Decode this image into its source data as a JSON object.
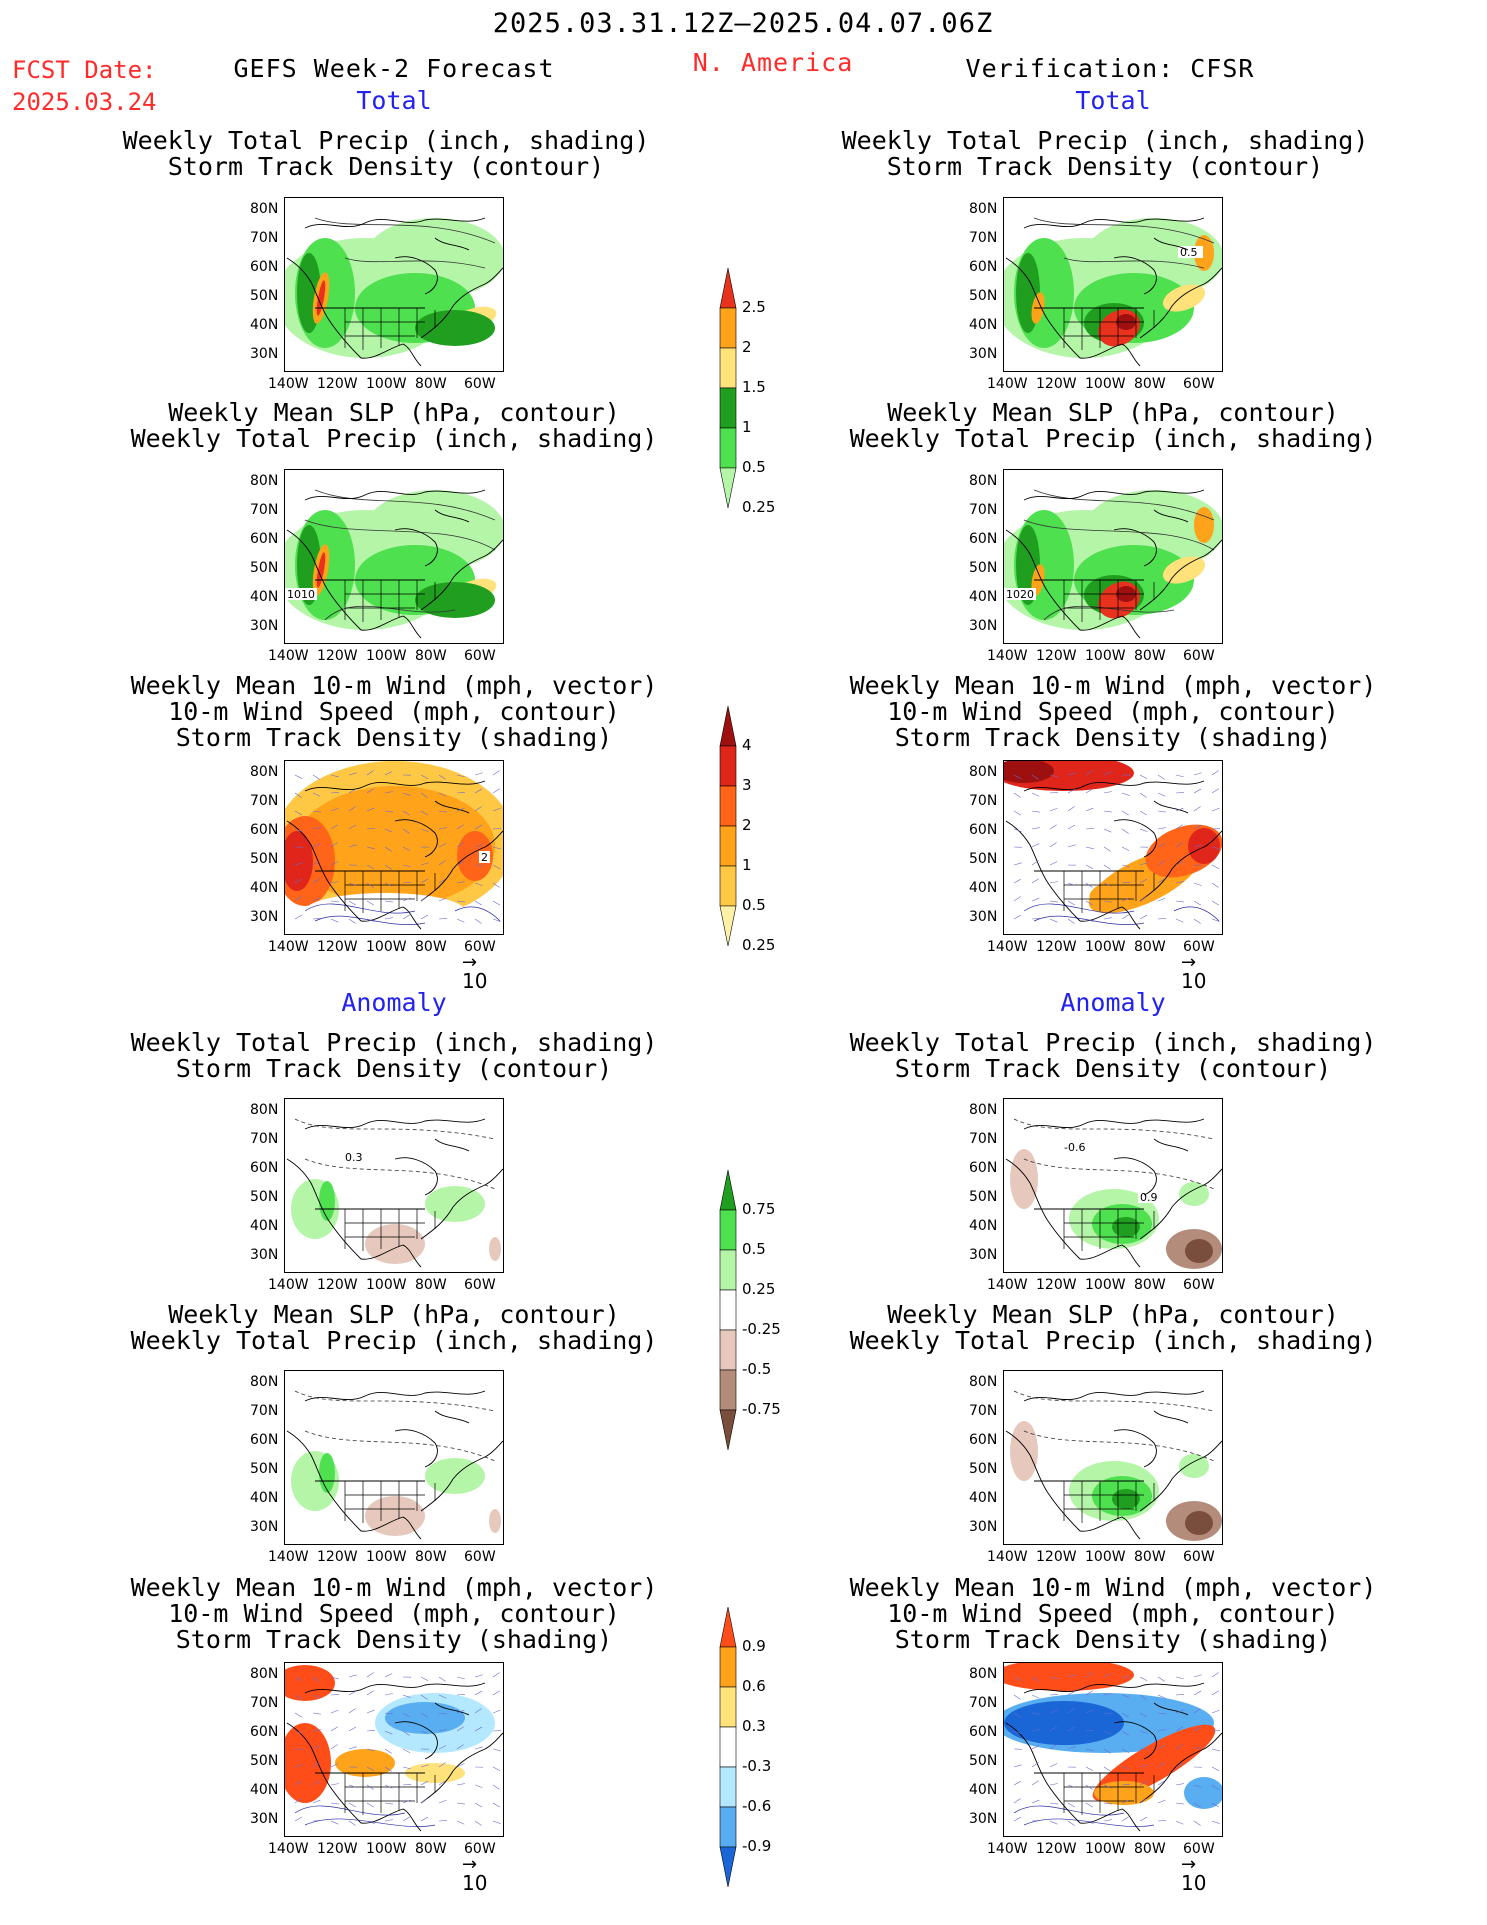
{
  "header": {
    "date_range": "2025.03.31.12Z–2025.04.07.06Z",
    "fcst_label": "FCST Date:",
    "fcst_date": "2025.03.24",
    "left_title": "GEFS Week-2 Forecast",
    "region": "N. America",
    "right_title": "Verification: CFSR",
    "total_label": "Total",
    "anomaly_label": "Anomaly"
  },
  "titles": {
    "precip_track": [
      "Weekly Total Precip (inch, shading)",
      "Storm Track Density (contour)"
    ],
    "slp_precip": [
      "Weekly Mean SLP (hPa, contour)",
      "Weekly Total Precip (inch, shading)"
    ],
    "wind_track": [
      "Weekly Mean 10-m Wind (mph, vector)",
      "10-m Wind Speed (mph, contour)",
      "Storm Track Density (shading)"
    ]
  },
  "axes": {
    "lat_labels": [
      "80N",
      "70N",
      "60N",
      "50N",
      "40N",
      "30N"
    ],
    "lon_labels": [
      "140W",
      "120W",
      "100W",
      "80W",
      "60W"
    ]
  },
  "vector_ref": "10",
  "map_contour_labels": {
    "fc_total_slp": "1010",
    "vf_total_slp": "1020",
    "fc_total_wind": "2",
    "vf_total_precip": "0.5",
    "vf_anom_precip_a": "-0.6",
    "vf_anom_precip_b": "0.9",
    "fc_anom_precip": "0.3"
  },
  "colorbars": {
    "precip_total": {
      "labels": [
        "2.5",
        "2",
        "1.5",
        "1",
        "0.5",
        "0.25"
      ],
      "colors": [
        "#e8321e",
        "#ffa31a",
        "#ffe27a",
        "#1f9e1f",
        "#4ee04e",
        "#b4f5a8"
      ]
    },
    "track_total": {
      "labels": [
        "4",
        "3",
        "2",
        "1",
        "0.5",
        "0.25"
      ],
      "colors": [
        "#9e1010",
        "#e0261a",
        "#ff6418",
        "#ffa31a",
        "#ffc844",
        "#fff0a8"
      ]
    },
    "precip_anom": {
      "labels": [
        "0.75",
        "0.5",
        "0.25",
        "-0.25",
        "-0.5",
        "-0.75"
      ],
      "colors": [
        "#1f9e1f",
        "#4ee04e",
        "#b4f5a8",
        "#ffffff",
        "#e6c8bc",
        "#b48c7c",
        "#7a4e3c"
      ]
    },
    "track_anom": {
      "labels": [
        "0.9",
        "0.6",
        "0.3",
        "-0.3",
        "-0.6",
        "-0.9"
      ],
      "colors": [
        "#ff4d1a",
        "#ffa31a",
        "#ffe27a",
        "#ffffff",
        "#b4e8ff",
        "#58aef0",
        "#1a66d6"
      ]
    }
  }
}
